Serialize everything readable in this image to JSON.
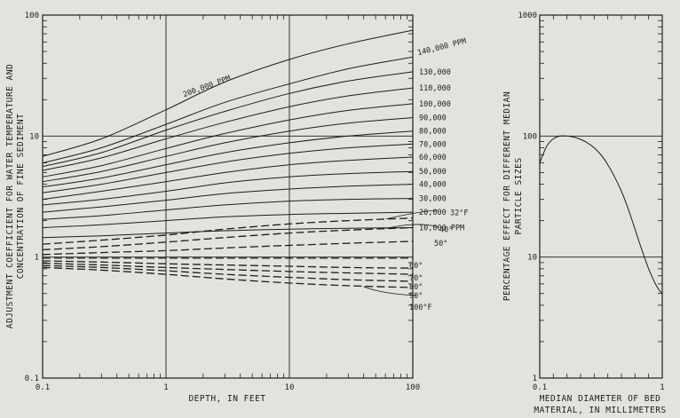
{
  "chart_data": [
    {
      "type": "line",
      "title": "",
      "xlabel": "DEPTH, IN FEET",
      "ylabel_lines": [
        "ADJUSTMENT COEFFICIENT FOR WATER TEMPERATURE AND",
        "CONCENTRATION OF FINE SEDIMENT"
      ],
      "x_scale": "log",
      "y_scale": "log",
      "xlim": [
        0.1,
        100
      ],
      "ylim": [
        0.1,
        100
      ],
      "grid": true,
      "x_ticks": [
        "0.1",
        "1",
        "10",
        "100"
      ],
      "y_ticks": [
        "0.1",
        "1",
        "10",
        "100"
      ],
      "x": [
        0.1,
        0.3,
        1,
        3,
        10,
        30,
        100
      ],
      "concentration_series": [
        {
          "name": "200,000 PPM",
          "values": [
            6.8,
            9.5,
            16.5,
            28,
            43,
            58,
            75
          ]
        },
        {
          "name": "140,000 PPM",
          "values": [
            6.0,
            8.0,
            12.5,
            19,
            27,
            36,
            45
          ]
        },
        {
          "name": "130,000",
          "values": [
            5.6,
            7.3,
            11.2,
            16,
            22.5,
            28.5,
            34
          ]
        },
        {
          "name": "110,000",
          "values": [
            5.2,
            6.6,
            9.5,
            13,
            17.5,
            21.5,
            25
          ]
        },
        {
          "name": "100,000",
          "values": [
            4.6,
            5.7,
            7.9,
            10.5,
            13.6,
            16.3,
            18.5
          ]
        },
        {
          "name": "90,000",
          "values": [
            4.2,
            5.1,
            6.8,
            8.8,
            11,
            12.8,
            14.2
          ]
        },
        {
          "name": "80,000",
          "values": [
            3.8,
            4.5,
            5.8,
            7.3,
            8.8,
            10,
            11
          ]
        },
        {
          "name": "70,000",
          "values": [
            3.4,
            4.0,
            5.0,
            6.1,
            7.2,
            8.0,
            8.6
          ]
        },
        {
          "name": "60,000",
          "values": [
            3.0,
            3.5,
            4.2,
            5.0,
            5.8,
            6.3,
            6.7
          ]
        },
        {
          "name": "50,000",
          "values": [
            2.7,
            3.0,
            3.5,
            4.1,
            4.6,
            4.9,
            5.1
          ]
        },
        {
          "name": "40,000",
          "values": [
            2.35,
            2.6,
            2.95,
            3.35,
            3.65,
            3.85,
            4.0
          ]
        },
        {
          "name": "30,000",
          "values": [
            2.05,
            2.2,
            2.45,
            2.7,
            2.9,
            3.0,
            3.05
          ]
        },
        {
          "name": "20,000",
          "values": [
            1.75,
            1.85,
            2.0,
            2.15,
            2.25,
            2.3,
            2.35
          ]
        },
        {
          "name": "10,000 PPM",
          "values": [
            1.45,
            1.5,
            1.58,
            1.65,
            1.7,
            1.73,
            1.75
          ]
        }
      ],
      "temperature_series": [
        {
          "name": "32°F",
          "values": [
            1.28,
            1.38,
            1.52,
            1.7,
            1.88,
            2.0,
            2.1
          ]
        },
        {
          "name": "40°",
          "values": [
            1.15,
            1.22,
            1.33,
            1.45,
            1.58,
            1.67,
            1.75
          ]
        },
        {
          "name": "50°",
          "values": [
            1.05,
            1.09,
            1.13,
            1.19,
            1.25,
            1.3,
            1.35
          ]
        },
        {
          "name": "60°",
          "values": [
            0.98,
            0.98,
            0.98,
            0.98,
            0.98,
            0.98,
            0.98
          ]
        },
        {
          "name": "70°",
          "values": [
            0.93,
            0.91,
            0.88,
            0.86,
            0.84,
            0.82,
            0.81
          ]
        },
        {
          "name": "80°",
          "values": [
            0.89,
            0.86,
            0.82,
            0.79,
            0.76,
            0.74,
            0.72
          ]
        },
        {
          "name": "90°",
          "values": [
            0.85,
            0.82,
            0.77,
            0.72,
            0.68,
            0.65,
            0.63
          ]
        },
        {
          "name": "100°F",
          "values": [
            0.82,
            0.78,
            0.72,
            0.66,
            0.61,
            0.58,
            0.56
          ]
        }
      ]
    },
    {
      "type": "line",
      "title": "",
      "xlabel_lines": [
        "MEDIAN DIAMETER OF BED",
        "MATERIAL, IN MILLIMETERS"
      ],
      "ylabel_lines": [
        "PERCENTAGE EFFECT FOR DIFFERENT MEDIAN",
        "PARTICLE SIZES"
      ],
      "x_scale": "linear",
      "y_scale": "log",
      "xlim": [
        0.1,
        1
      ],
      "ylim": [
        1,
        1000
      ],
      "grid": true,
      "x_ticks": [
        "0.1",
        "1"
      ],
      "y_ticks": [
        "1",
        "10",
        "100",
        "1000"
      ],
      "series": [
        {
          "x": [
            0.1,
            0.15,
            0.2,
            0.25,
            0.3,
            0.35,
            0.4,
            0.45,
            0.5,
            0.55,
            0.6,
            0.65,
            0.7,
            0.75,
            0.8,
            0.85,
            0.9,
            0.95,
            0.98,
            1.0
          ],
          "values": [
            60,
            82,
            95,
            100,
            100,
            98,
            94,
            88,
            80,
            70,
            58,
            46,
            35,
            25,
            17,
            11.5,
            8,
            6,
            5.3,
            5
          ]
        }
      ]
    }
  ]
}
